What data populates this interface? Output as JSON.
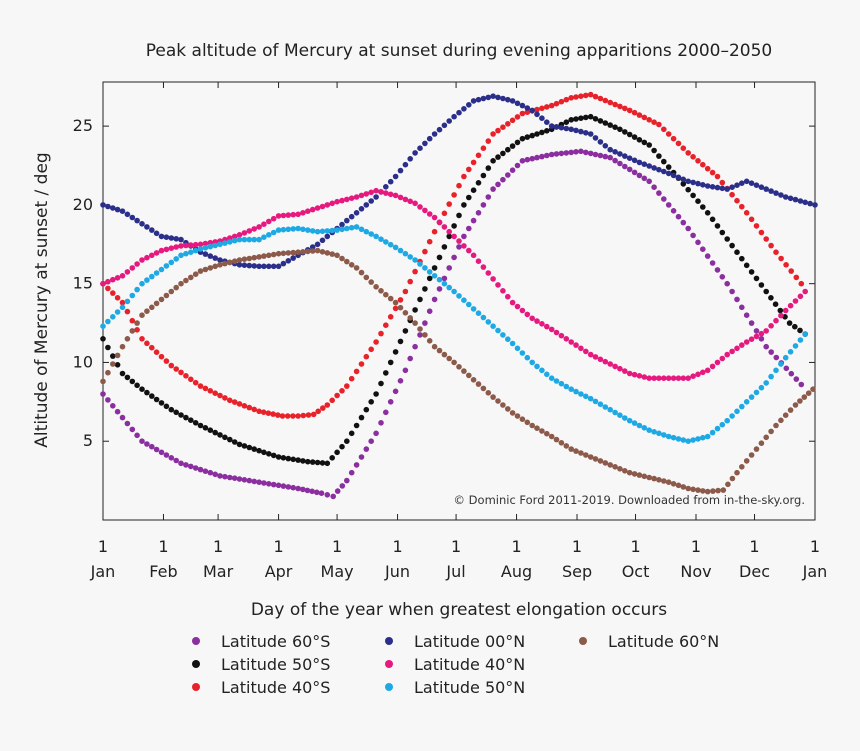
{
  "chart_data": {
    "type": "scatter",
    "title": "Peak altitude of Mercury at sunset during evening apparitions 2000–2050",
    "xlabel": "Day of the year when greatest elongation occurs",
    "ylabel": "Altitude of Mercury at sunset / deg",
    "credit": "© Dominic Ford 2011-2019. Downloaded from in-the-sky.org.",
    "xlim": [
      0,
      365
    ],
    "ylim": [
      0,
      27.8
    ],
    "x_ticks": [
      {
        "day": 0,
        "day_label": "1",
        "month": "Jan"
      },
      {
        "day": 31,
        "day_label": "1",
        "month": "Feb"
      },
      {
        "day": 59,
        "day_label": "1",
        "month": "Mar"
      },
      {
        "day": 90,
        "day_label": "1",
        "month": "Apr"
      },
      {
        "day": 120,
        "day_label": "1",
        "month": "May"
      },
      {
        "day": 151,
        "day_label": "1",
        "month": "Jun"
      },
      {
        "day": 181,
        "day_label": "1",
        "month": "Jul"
      },
      {
        "day": 212,
        "day_label": "1",
        "month": "Aug"
      },
      {
        "day": 243,
        "day_label": "1",
        "month": "Sep"
      },
      {
        "day": 273,
        "day_label": "1",
        "month": "Oct"
      },
      {
        "day": 304,
        "day_label": "1",
        "month": "Nov"
      },
      {
        "day": 334,
        "day_label": "1",
        "month": "Dec"
      },
      {
        "day": 365,
        "day_label": "1",
        "month": "Jan"
      }
    ],
    "y_ticks": [
      5,
      10,
      15,
      20,
      25
    ],
    "grid": false,
    "legend_position": "bottom",
    "series": [
      {
        "name": "Latitude 60°S",
        "color": "#8b2fa0",
        "points": [
          [
            0,
            8
          ],
          [
            20,
            5
          ],
          [
            40,
            3.6
          ],
          [
            60,
            2.8
          ],
          [
            80,
            2.4
          ],
          [
            100,
            2
          ],
          [
            112,
            1.7
          ],
          [
            118,
            1.5
          ],
          [
            125,
            2.5
          ],
          [
            140,
            5.5
          ],
          [
            155,
            9.5
          ],
          [
            170,
            14
          ],
          [
            185,
            18
          ],
          [
            200,
            21
          ],
          [
            215,
            22.8
          ],
          [
            230,
            23.2
          ],
          [
            245,
            23.4
          ],
          [
            260,
            23
          ],
          [
            280,
            21.5
          ],
          [
            300,
            18.5
          ],
          [
            320,
            15
          ],
          [
            340,
            11
          ],
          [
            358,
            8.6
          ]
        ]
      },
      {
        "name": "Latitude 50°S",
        "color": "#111111",
        "points": [
          [
            0,
            11.5
          ],
          [
            10,
            9.3
          ],
          [
            20,
            8.3
          ],
          [
            35,
            7
          ],
          [
            50,
            6
          ],
          [
            70,
            4.8
          ],
          [
            90,
            4
          ],
          [
            105,
            3.7
          ],
          [
            115,
            3.6
          ],
          [
            125,
            5
          ],
          [
            140,
            8
          ],
          [
            155,
            12
          ],
          [
            170,
            16
          ],
          [
            185,
            20
          ],
          [
            200,
            22.8
          ],
          [
            215,
            24.2
          ],
          [
            230,
            24.8
          ],
          [
            240,
            25.4
          ],
          [
            250,
            25.6
          ],
          [
            265,
            24.8
          ],
          [
            280,
            23.8
          ],
          [
            295,
            21.7
          ],
          [
            310,
            19.5
          ],
          [
            325,
            17
          ],
          [
            340,
            14.5
          ],
          [
            352,
            12.5
          ],
          [
            360,
            11.8
          ]
        ]
      },
      {
        "name": "Latitude 40°S",
        "color": "#e8222a",
        "points": [
          [
            0,
            15
          ],
          [
            10,
            13.8
          ],
          [
            20,
            11.5
          ],
          [
            35,
            9.8
          ],
          [
            50,
            8.5
          ],
          [
            65,
            7.6
          ],
          [
            80,
            6.9
          ],
          [
            92,
            6.6
          ],
          [
            100,
            6.6
          ],
          [
            108,
            6.7
          ],
          [
            115,
            7.3
          ],
          [
            125,
            8.5
          ],
          [
            140,
            11.3
          ],
          [
            155,
            14.5
          ],
          [
            170,
            18.3
          ],
          [
            185,
            21.8
          ],
          [
            200,
            24.5
          ],
          [
            215,
            25.8
          ],
          [
            230,
            26.3
          ],
          [
            240,
            26.8
          ],
          [
            250,
            27
          ],
          [
            260,
            26.5
          ],
          [
            270,
            26
          ],
          [
            285,
            25.1
          ],
          [
            300,
            23.3
          ],
          [
            315,
            21.8
          ],
          [
            330,
            19.5
          ],
          [
            345,
            17
          ],
          [
            358,
            15
          ]
        ]
      },
      {
        "name": "Latitude 00°N",
        "color": "#2b2f8a",
        "points": [
          [
            0,
            20
          ],
          [
            10,
            19.6
          ],
          [
            20,
            18.8
          ],
          [
            30,
            18
          ],
          [
            40,
            17.8
          ],
          [
            50,
            17
          ],
          [
            60,
            16.5
          ],
          [
            70,
            16.2
          ],
          [
            80,
            16.1
          ],
          [
            90,
            16.1
          ],
          [
            100,
            16.8
          ],
          [
            110,
            17.5
          ],
          [
            120,
            18.5
          ],
          [
            130,
            19.5
          ],
          [
            140,
            20.5
          ],
          [
            150,
            21.8
          ],
          [
            160,
            23.3
          ],
          [
            170,
            24.5
          ],
          [
            180,
            25.6
          ],
          [
            190,
            26.6
          ],
          [
            200,
            26.9
          ],
          [
            210,
            26.6
          ],
          [
            220,
            26
          ],
          [
            230,
            25
          ],
          [
            240,
            24.8
          ],
          [
            250,
            24.5
          ],
          [
            260,
            23.5
          ],
          [
            275,
            22.7
          ],
          [
            290,
            22
          ],
          [
            300,
            21.5
          ],
          [
            310,
            21.2
          ],
          [
            320,
            21
          ],
          [
            330,
            21.5
          ],
          [
            340,
            21
          ],
          [
            350,
            20.5
          ],
          [
            365,
            20
          ]
        ]
      },
      {
        "name": "Latitude 40°N",
        "color": "#e6197f",
        "points": [
          [
            0,
            15
          ],
          [
            10,
            15.5
          ],
          [
            20,
            16.5
          ],
          [
            30,
            17.1
          ],
          [
            40,
            17.4
          ],
          [
            50,
            17.5
          ],
          [
            60,
            17.7
          ],
          [
            70,
            18.1
          ],
          [
            80,
            18.6
          ],
          [
            90,
            19.3
          ],
          [
            100,
            19.4
          ],
          [
            110,
            19.8
          ],
          [
            120,
            20.2
          ],
          [
            130,
            20.5
          ],
          [
            140,
            20.9
          ],
          [
            150,
            20.6
          ],
          [
            160,
            20.1
          ],
          [
            170,
            19.2
          ],
          [
            180,
            18
          ],
          [
            190,
            16.8
          ],
          [
            200,
            15.3
          ],
          [
            210,
            13.8
          ],
          [
            220,
            12.8
          ],
          [
            230,
            12.1
          ],
          [
            240,
            11.3
          ],
          [
            250,
            10.5
          ],
          [
            260,
            9.9
          ],
          [
            270,
            9.3
          ],
          [
            280,
            9
          ],
          [
            290,
            9
          ],
          [
            300,
            9
          ],
          [
            310,
            9.5
          ],
          [
            320,
            10.5
          ],
          [
            330,
            11.3
          ],
          [
            340,
            12
          ],
          [
            350,
            13.3
          ],
          [
            360,
            14.5
          ]
        ]
      },
      {
        "name": "Latitude 50°N",
        "color": "#1ea9e4",
        "points": [
          [
            0,
            12.3
          ],
          [
            10,
            13.5
          ],
          [
            20,
            15
          ],
          [
            30,
            15.9
          ],
          [
            40,
            16.8
          ],
          [
            50,
            17.2
          ],
          [
            60,
            17.5
          ],
          [
            70,
            17.8
          ],
          [
            80,
            17.8
          ],
          [
            90,
            18.4
          ],
          [
            100,
            18.5
          ],
          [
            110,
            18.3
          ],
          [
            120,
            18.4
          ],
          [
            130,
            18.6
          ],
          [
            140,
            18
          ],
          [
            150,
            17.3
          ],
          [
            160,
            16.5
          ],
          [
            170,
            15.5
          ],
          [
            180,
            14.5
          ],
          [
            190,
            13.4
          ],
          [
            200,
            12.3
          ],
          [
            210,
            11.2
          ],
          [
            220,
            10
          ],
          [
            230,
            9
          ],
          [
            240,
            8.3
          ],
          [
            250,
            7.7
          ],
          [
            260,
            7
          ],
          [
            270,
            6.3
          ],
          [
            280,
            5.7
          ],
          [
            290,
            5.3
          ],
          [
            300,
            5
          ],
          [
            310,
            5.3
          ],
          [
            320,
            6.3
          ],
          [
            330,
            7.5
          ],
          [
            340,
            8.7
          ],
          [
            350,
            10.3
          ],
          [
            360,
            11.8
          ]
        ]
      },
      {
        "name": "Latitude 60°N",
        "color": "#8b5a4a",
        "points": [
          [
            0,
            8.8
          ],
          [
            10,
            11
          ],
          [
            20,
            13
          ],
          [
            30,
            14
          ],
          [
            40,
            15
          ],
          [
            50,
            15.8
          ],
          [
            60,
            16.2
          ],
          [
            70,
            16.5
          ],
          [
            80,
            16.7
          ],
          [
            90,
            16.9
          ],
          [
            100,
            17
          ],
          [
            110,
            17.1
          ],
          [
            120,
            16.8
          ],
          [
            130,
            16
          ],
          [
            140,
            14.8
          ],
          [
            150,
            13.8
          ],
          [
            160,
            12.5
          ],
          [
            170,
            11
          ],
          [
            180,
            10
          ],
          [
            190,
            8.9
          ],
          [
            200,
            7.8
          ],
          [
            210,
            6.8
          ],
          [
            220,
            6
          ],
          [
            230,
            5.3
          ],
          [
            240,
            4.5
          ],
          [
            250,
            4
          ],
          [
            260,
            3.5
          ],
          [
            270,
            3
          ],
          [
            280,
            2.7
          ],
          [
            290,
            2.4
          ],
          [
            300,
            2
          ],
          [
            310,
            1.8
          ],
          [
            318,
            1.9
          ],
          [
            325,
            3
          ],
          [
            335,
            4.5
          ],
          [
            345,
            6
          ],
          [
            355,
            7.3
          ],
          [
            364,
            8.3
          ]
        ]
      }
    ]
  }
}
